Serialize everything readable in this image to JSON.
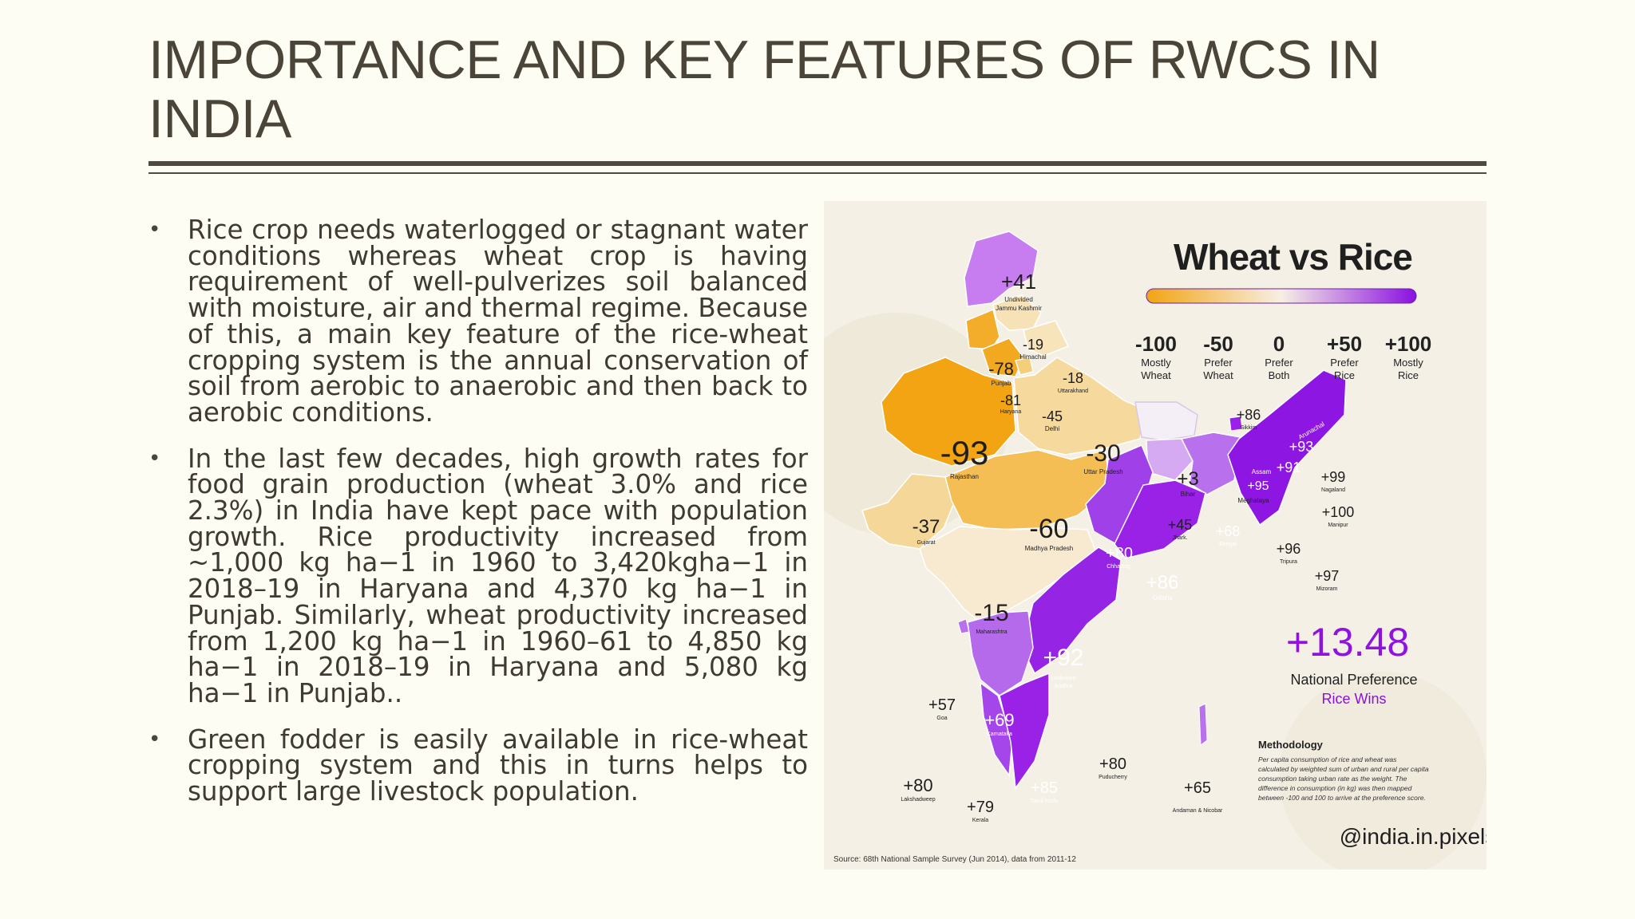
{
  "title": "IMPORTANCE AND KEY FEATURES OF RWCS IN INDIA",
  "bullets": [
    "Rice crop needs waterlogged or stagnant water conditions whereas wheat crop is having requirement of well-pulverizes soil balanced with moisture, air and thermal regime. Because of this, a main key feature of the rice-wheat cropping system is the annual conservation of soil from aerobic to anaerobic and then back to aerobic conditions.",
    "In the last few decades, high growth rates for food grain production (wheat 3.0% and rice 2.3%) in India have kept pace with population growth. Rice productivity increased from ~1,000 kg ha−1 in 1960 to 3,420kgha−1 in 2018–19 in Haryana and 4,370 kg ha−1 in Punjab. Similarly, wheat productivity increased from 1,200 kg ha−1 in 1960–61 to 4,850 kg ha−1 in 2018–19 in Haryana and 5,080 kg ha−1 in Punjab..",
    "Green fodder is easily available in rice-wheat cropping system and this in turns helps to support large livestock population."
  ],
  "map": {
    "title": "Wheat vs Rice",
    "legend": [
      {
        "value": "-100",
        "label1": "Mostly",
        "label2": "Wheat"
      },
      {
        "value": "-50",
        "label1": "Prefer",
        "label2": "Wheat"
      },
      {
        "value": "0",
        "label1": "Prefer",
        "label2": "Both"
      },
      {
        "value": "+50",
        "label1": "Prefer",
        "label2": "Rice"
      },
      {
        "value": "+100",
        "label1": "Mostly",
        "label2": "Rice"
      }
    ],
    "national_value": "+13.48",
    "national_label": "National Preference",
    "national_result": "Rice Wins",
    "methodology_title": "Methodology",
    "methodology_text": [
      "Per capita consumption of rice and wheat was",
      "calculated by weighted sum of urban and rural per capita",
      "consumption taking urban rate as the weight. The",
      "difference in consumption (in kg) was then mapped",
      "between -100 and 100 to arrive at the preference score."
    ],
    "handle": "@india.in.pixels",
    "source": "Source: 68th National Sample Survey (Jun 2014), data from 2011-12",
    "states": [
      {
        "value": "+41",
        "name": "Undivided\nJammu Kashmir",
        "color": "#c77cf0"
      },
      {
        "value": "-19",
        "name": "Himachal",
        "color": "#f6e2b6"
      },
      {
        "value": "-78",
        "name": "Punjab",
        "color": "#f3ad2a"
      },
      {
        "value": "-18",
        "name": "Uttarakhand",
        "color": "#f7e4ba"
      },
      {
        "value": "-81",
        "name": "Haryana",
        "color": "#f2a81f"
      },
      {
        "value": "-45",
        "name": "Delhi",
        "color": "#f5ce7c"
      },
      {
        "value": "-93",
        "name": "Rajasthan",
        "color": "#f2a412"
      },
      {
        "value": "-30",
        "name": "Uttar Pradesh",
        "color": "#f6d99c"
      },
      {
        "value": "+3",
        "name": "Bihar",
        "color": "#f4eef6"
      },
      {
        "value": "+86",
        "name": "Sikkim",
        "color": "#9a22e6"
      },
      {
        "value": "+93",
        "name": "Arunachal",
        "color": "#8e16e2"
      },
      {
        "value": "+91",
        "name": "",
        "color": "#8e16e2"
      },
      {
        "value": "+95",
        "name": "Assam",
        "color": "#8e16e2"
      },
      {
        "value": "+99",
        "name": "Nagaland",
        "color": "#8e16e2"
      },
      {
        "value": "Meghalaya",
        "name": "",
        "color": "#8e16e2"
      },
      {
        "value": "+100",
        "name": "Manipur",
        "color": "#8a10e0"
      },
      {
        "value": "-37",
        "name": "Gujarat",
        "color": "#f6d79a"
      },
      {
        "value": "-60",
        "name": "Madhya Pradesh",
        "color": "#f4be55"
      },
      {
        "value": "+45",
        "name": "Jhark.",
        "color": "#d6aaf2"
      },
      {
        "value": "+68",
        "name": "Bengal",
        "color": "#b970ec"
      },
      {
        "value": "+80",
        "name": "Chhattisg.",
        "color": "#a040e8"
      },
      {
        "value": "+86",
        "name": "Odisha",
        "color": "#9a22e6"
      },
      {
        "value": "+96",
        "name": "Tripura",
        "color": "#8e16e2"
      },
      {
        "value": "+97",
        "name": "Mizoram",
        "color": "#8e16e2"
      },
      {
        "value": "-15",
        "name": "Maharashtra",
        "color": "#f7ead0"
      },
      {
        "value": "+92",
        "name": "Undivided\nAndhra",
        "color": "#9524e4"
      },
      {
        "value": "+57",
        "name": "Goa",
        "color": "#b970ec"
      },
      {
        "value": "+69",
        "name": "Karnataka",
        "color": "#b56aec"
      },
      {
        "value": "+80",
        "name": "Lakshadweep",
        "color": "#a040e8"
      },
      {
        "value": "+79",
        "name": "Kerala",
        "color": "#a446ea"
      },
      {
        "value": "+85",
        "name": "Tamil Nadu",
        "color": "#9a22e6"
      },
      {
        "value": "+80",
        "name": "Puducherry",
        "color": "#a040e8"
      },
      {
        "value": "+65",
        "name": "Andaman & Nicobar",
        "color": "#b970ec"
      }
    ]
  }
}
